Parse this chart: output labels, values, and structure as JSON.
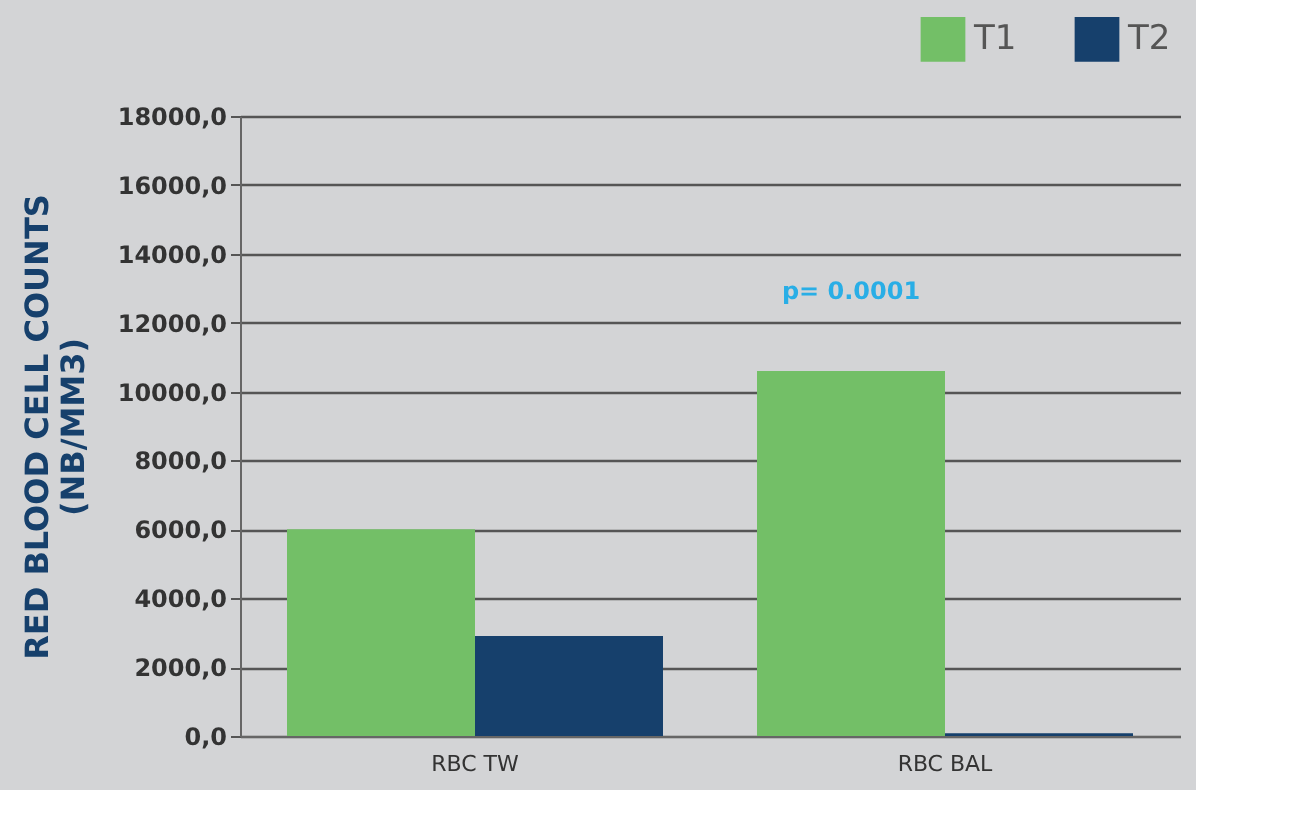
{
  "chart_data": {
    "type": "bar",
    "ylabel": "RED BLOOD CELL COUNTS\n(NB/MM3)",
    "categories": [
      "RBC TW",
      "RBC BAL"
    ],
    "series": [
      {
        "name": "T1",
        "color": "#73bf67",
        "values": [
          6000,
          10600
        ]
      },
      {
        "name": "T2",
        "color": "#16406c",
        "values": [
          2900,
          80
        ]
      }
    ],
    "ylim": [
      0,
      18000
    ],
    "yticks": [
      {
        "value": 0,
        "label": "0,0"
      },
      {
        "value": 2000,
        "label": "2000,0"
      },
      {
        "value": 4000,
        "label": "4000,0"
      },
      {
        "value": 6000,
        "label": "6000,0"
      },
      {
        "value": 8000,
        "label": "8000,0"
      },
      {
        "value": 10000,
        "label": "10000,0"
      },
      {
        "value": 12000,
        "label": "12000,0"
      },
      {
        "value": 14000,
        "label": "14000,0"
      },
      {
        "value": 16000,
        "label": "16000,0"
      },
      {
        "value": 18000,
        "label": "18000,0"
      }
    ],
    "annotations": [
      "p= 0.0001"
    ],
    "grid": "y",
    "legend": "top right"
  }
}
